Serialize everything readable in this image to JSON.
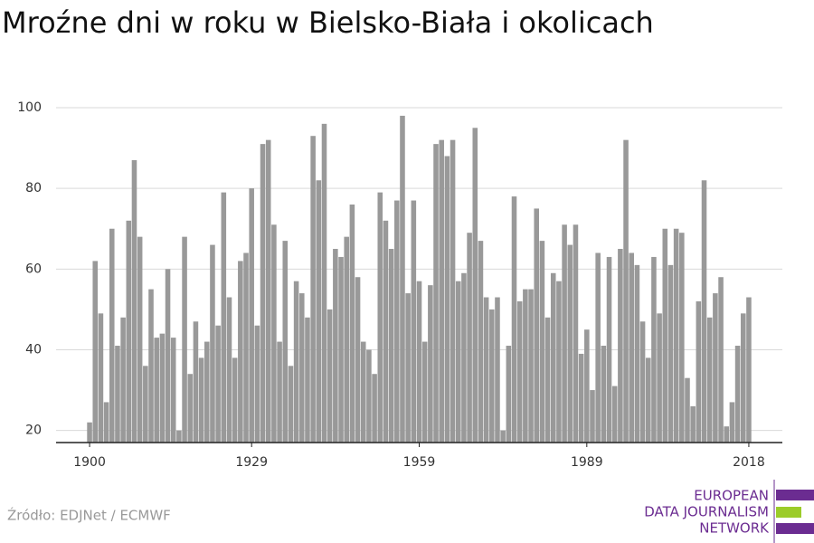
{
  "chart_data": {
    "type": "bar",
    "title": "Mroźne dni w roku w Bielsko-Biała i okolicach",
    "x": [
      1900,
      1901,
      1902,
      1903,
      1904,
      1905,
      1906,
      1907,
      1908,
      1909,
      1910,
      1911,
      1912,
      1913,
      1914,
      1915,
      1916,
      1917,
      1918,
      1919,
      1920,
      1921,
      1922,
      1923,
      1924,
      1925,
      1926,
      1927,
      1928,
      1929,
      1930,
      1931,
      1932,
      1933,
      1934,
      1935,
      1936,
      1937,
      1938,
      1939,
      1940,
      1941,
      1942,
      1943,
      1944,
      1945,
      1946,
      1947,
      1948,
      1949,
      1950,
      1951,
      1952,
      1953,
      1954,
      1955,
      1956,
      1957,
      1958,
      1959,
      1960,
      1961,
      1962,
      1963,
      1964,
      1965,
      1966,
      1967,
      1968,
      1969,
      1970,
      1971,
      1972,
      1973,
      1974,
      1975,
      1976,
      1977,
      1978,
      1979,
      1980,
      1981,
      1982,
      1983,
      1984,
      1985,
      1986,
      1987,
      1988,
      1989,
      1990,
      1991,
      1992,
      1993,
      1994,
      1995,
      1996,
      1997,
      1998,
      1999,
      2000,
      2001,
      2002,
      2003,
      2004,
      2005,
      2006,
      2007,
      2008,
      2009,
      2010,
      2011,
      2012,
      2013,
      2014,
      2015,
      2016,
      2017,
      2018
    ],
    "values": [
      22,
      62,
      49,
      27,
      70,
      41,
      48,
      72,
      87,
      68,
      36,
      55,
      43,
      44,
      60,
      43,
      20,
      68,
      34,
      47,
      38,
      42,
      66,
      46,
      79,
      53,
      38,
      62,
      64,
      80,
      46,
      91,
      92,
      71,
      42,
      67,
      36,
      57,
      54,
      48,
      93,
      82,
      96,
      50,
      65,
      63,
      68,
      76,
      58,
      42,
      40,
      34,
      79,
      72,
      65,
      77,
      98,
      54,
      77,
      57,
      42,
      56,
      91,
      92,
      88,
      92,
      57,
      59,
      69,
      95,
      67,
      53,
      50,
      53,
      20,
      41,
      78,
      52,
      55,
      55,
      75,
      67,
      48,
      59,
      57,
      71,
      66,
      71,
      39,
      45,
      30,
      64,
      41,
      63,
      31,
      65,
      92,
      64,
      61,
      47,
      38,
      63,
      49,
      70,
      61,
      70,
      69,
      33,
      26,
      52,
      82,
      48,
      54,
      58,
      21,
      27,
      41,
      49,
      53
    ],
    "color": "#999999",
    "xlim": [
      1894,
      2024
    ],
    "xticks": [
      1900,
      1929,
      1959,
      1989,
      2018
    ],
    "ylim": [
      17,
      100
    ],
    "yticks": [
      20,
      40,
      60,
      80,
      100
    ],
    "grid": true,
    "source": "Źródło: EDJNet / ECMWF",
    "logo": [
      "EUROPEAN",
      "DATA JOURNALISM",
      "NETWORK"
    ]
  }
}
